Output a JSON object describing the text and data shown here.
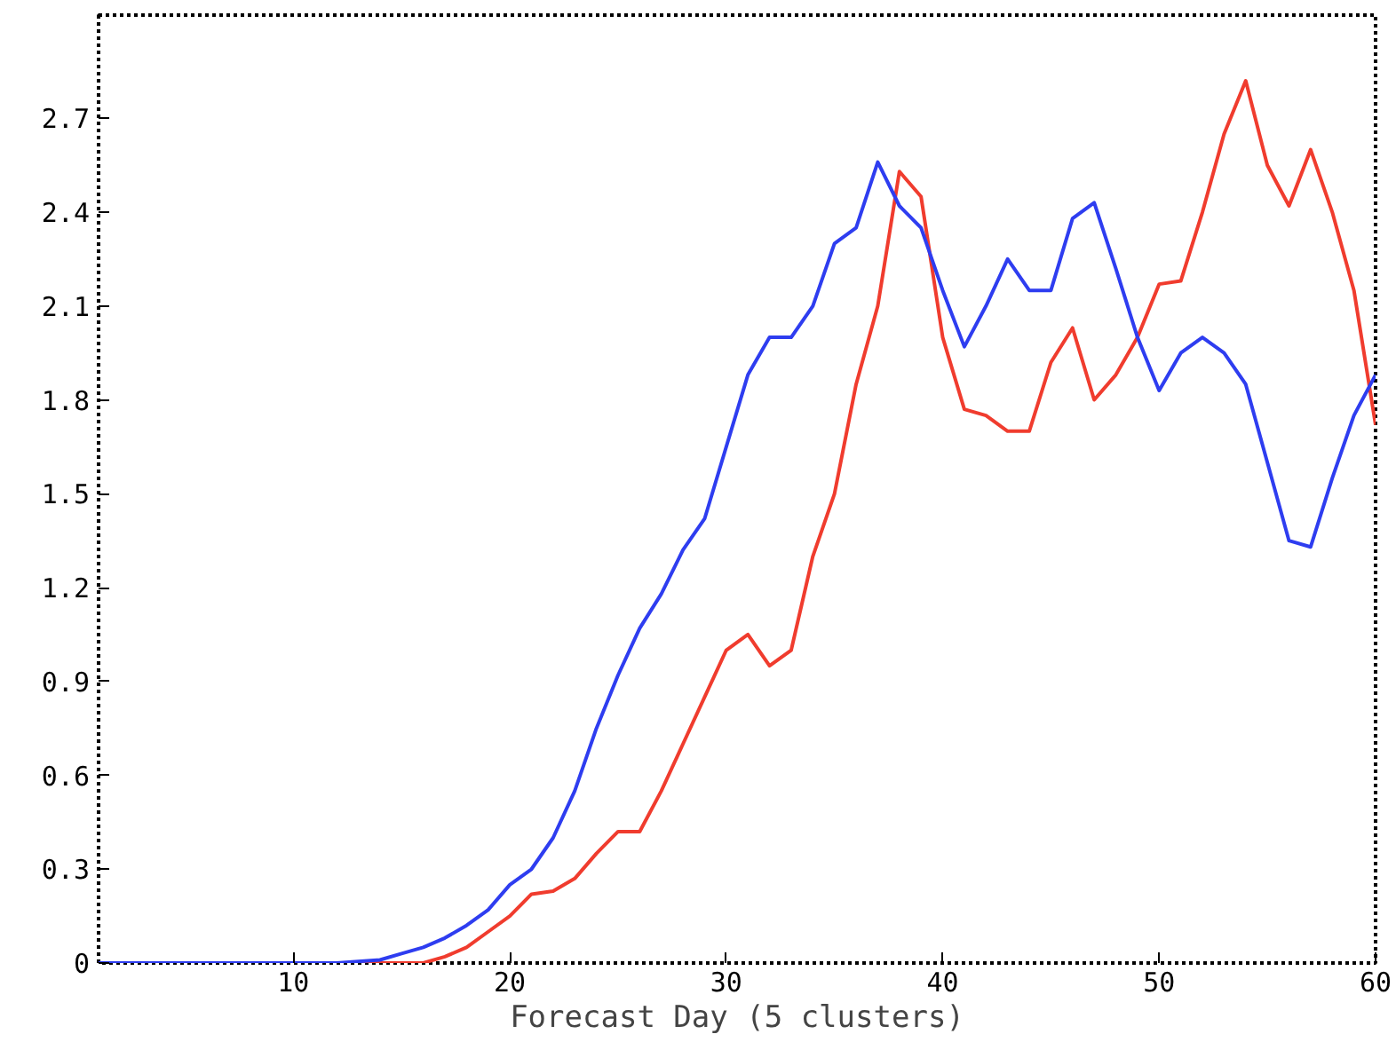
{
  "chart_data": {
    "type": "line",
    "xlabel": "Forecast Day (5 clusters)",
    "x": [
      1,
      2,
      3,
      4,
      5,
      6,
      7,
      8,
      9,
      10,
      11,
      12,
      13,
      14,
      15,
      16,
      17,
      18,
      19,
      20,
      21,
      22,
      23,
      24,
      25,
      26,
      27,
      28,
      29,
      30,
      31,
      32,
      33,
      34,
      35,
      36,
      37,
      38,
      39,
      40,
      41,
      42,
      43,
      44,
      45,
      46,
      47,
      48,
      49,
      50,
      51,
      52,
      53,
      54,
      55,
      56,
      57,
      58,
      59,
      60
    ],
    "xlim": [
      1,
      60
    ],
    "xticks": [
      10,
      20,
      30,
      40,
      50,
      60
    ],
    "ylim": [
      0,
      3.03
    ],
    "yticks": [
      0,
      0.3,
      0.6,
      0.9,
      1.2,
      1.5,
      1.8,
      2.1,
      2.4,
      2.7
    ],
    "grid": false,
    "marker": "none",
    "line_style": "solid",
    "series": [
      {
        "color": "#2e3df0",
        "values": [
          0,
          0,
          0,
          0,
          0,
          0,
          0,
          0,
          0,
          0,
          0,
          0,
          0.005,
          0.01,
          0.03,
          0.05,
          0.08,
          0.12,
          0.17,
          0.25,
          0.3,
          0.4,
          0.55,
          0.75,
          0.92,
          1.07,
          1.18,
          1.32,
          1.42,
          1.65,
          1.88,
          2.0,
          2.0,
          2.1,
          2.3,
          2.35,
          2.56,
          2.42,
          2.35,
          2.15,
          1.97,
          2.1,
          2.25,
          2.15,
          2.15,
          2.38,
          2.43,
          2.22,
          2.0,
          1.83,
          1.95,
          2.0,
          1.95,
          1.85,
          1.6,
          1.35,
          1.33,
          1.55,
          1.75,
          1.88
        ]
      },
      {
        "color": "#f03c2e",
        "values": [
          null,
          null,
          null,
          null,
          null,
          null,
          null,
          null,
          null,
          null,
          null,
          0,
          0,
          0,
          0,
          0,
          0.02,
          0.05,
          0.1,
          0.15,
          0.22,
          0.23,
          0.27,
          0.35,
          0.42,
          0.42,
          0.55,
          0.7,
          0.85,
          1.0,
          1.05,
          0.95,
          1.0,
          1.3,
          1.5,
          1.85,
          2.1,
          2.53,
          2.45,
          2.0,
          1.77,
          1.75,
          1.7,
          1.7,
          1.92,
          2.03,
          1.8,
          1.88,
          2.0,
          2.17,
          2.18,
          2.4,
          2.65,
          2.82,
          2.55,
          2.42,
          2.6,
          2.4,
          2.15,
          1.72
        ]
      }
    ]
  }
}
